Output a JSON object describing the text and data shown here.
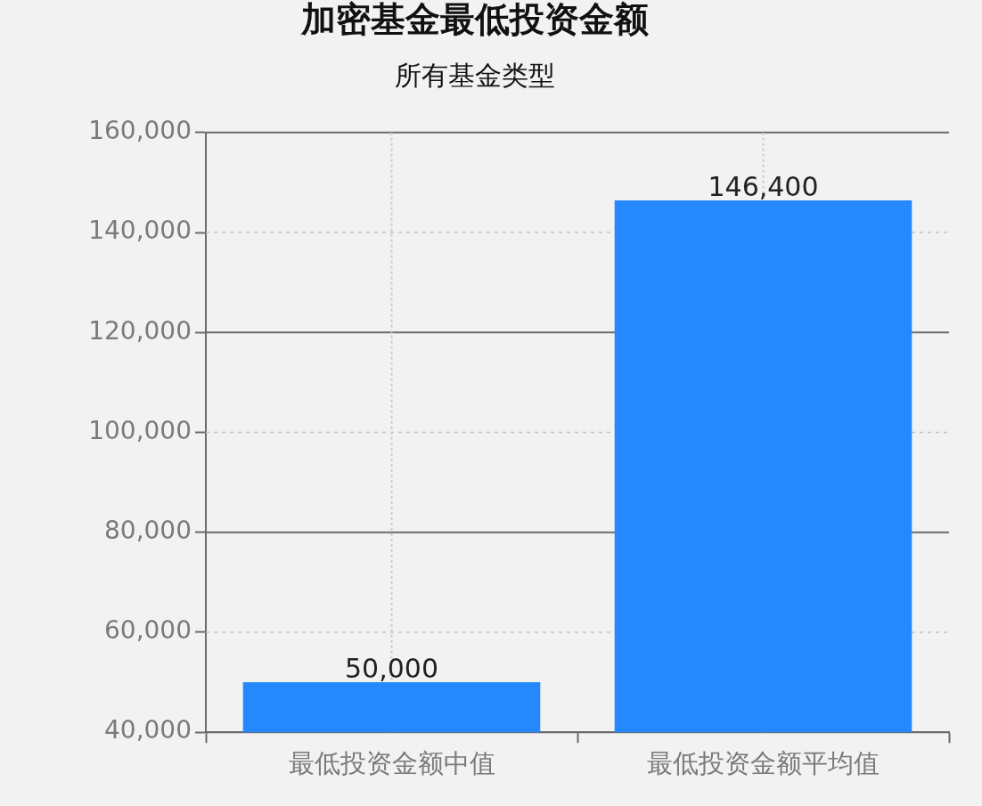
{
  "chart_data": {
    "type": "bar",
    "title": "加密基金最低投资金额",
    "subtitle": "所有基金类型",
    "categories": [
      "最低投资金额中值",
      "最低投资金额平均值"
    ],
    "values": [
      50000,
      146400
    ],
    "color": "#2589fd",
    "value_labels": [
      "50,000",
      "146,400"
    ],
    "ylim": [
      40000,
      160000
    ],
    "yticks": [
      {
        "value": 40000,
        "label": "40,000"
      },
      {
        "value": 60000,
        "label": "60,000"
      },
      {
        "value": 80000,
        "label": "80,000"
      },
      {
        "value": 100000,
        "label": "100,000"
      },
      {
        "value": 120000,
        "label": "120,000"
      },
      {
        "value": 140000,
        "label": "140,000"
      },
      {
        "value": 160000,
        "label": "160,000"
      }
    ],
    "grid": true
  }
}
